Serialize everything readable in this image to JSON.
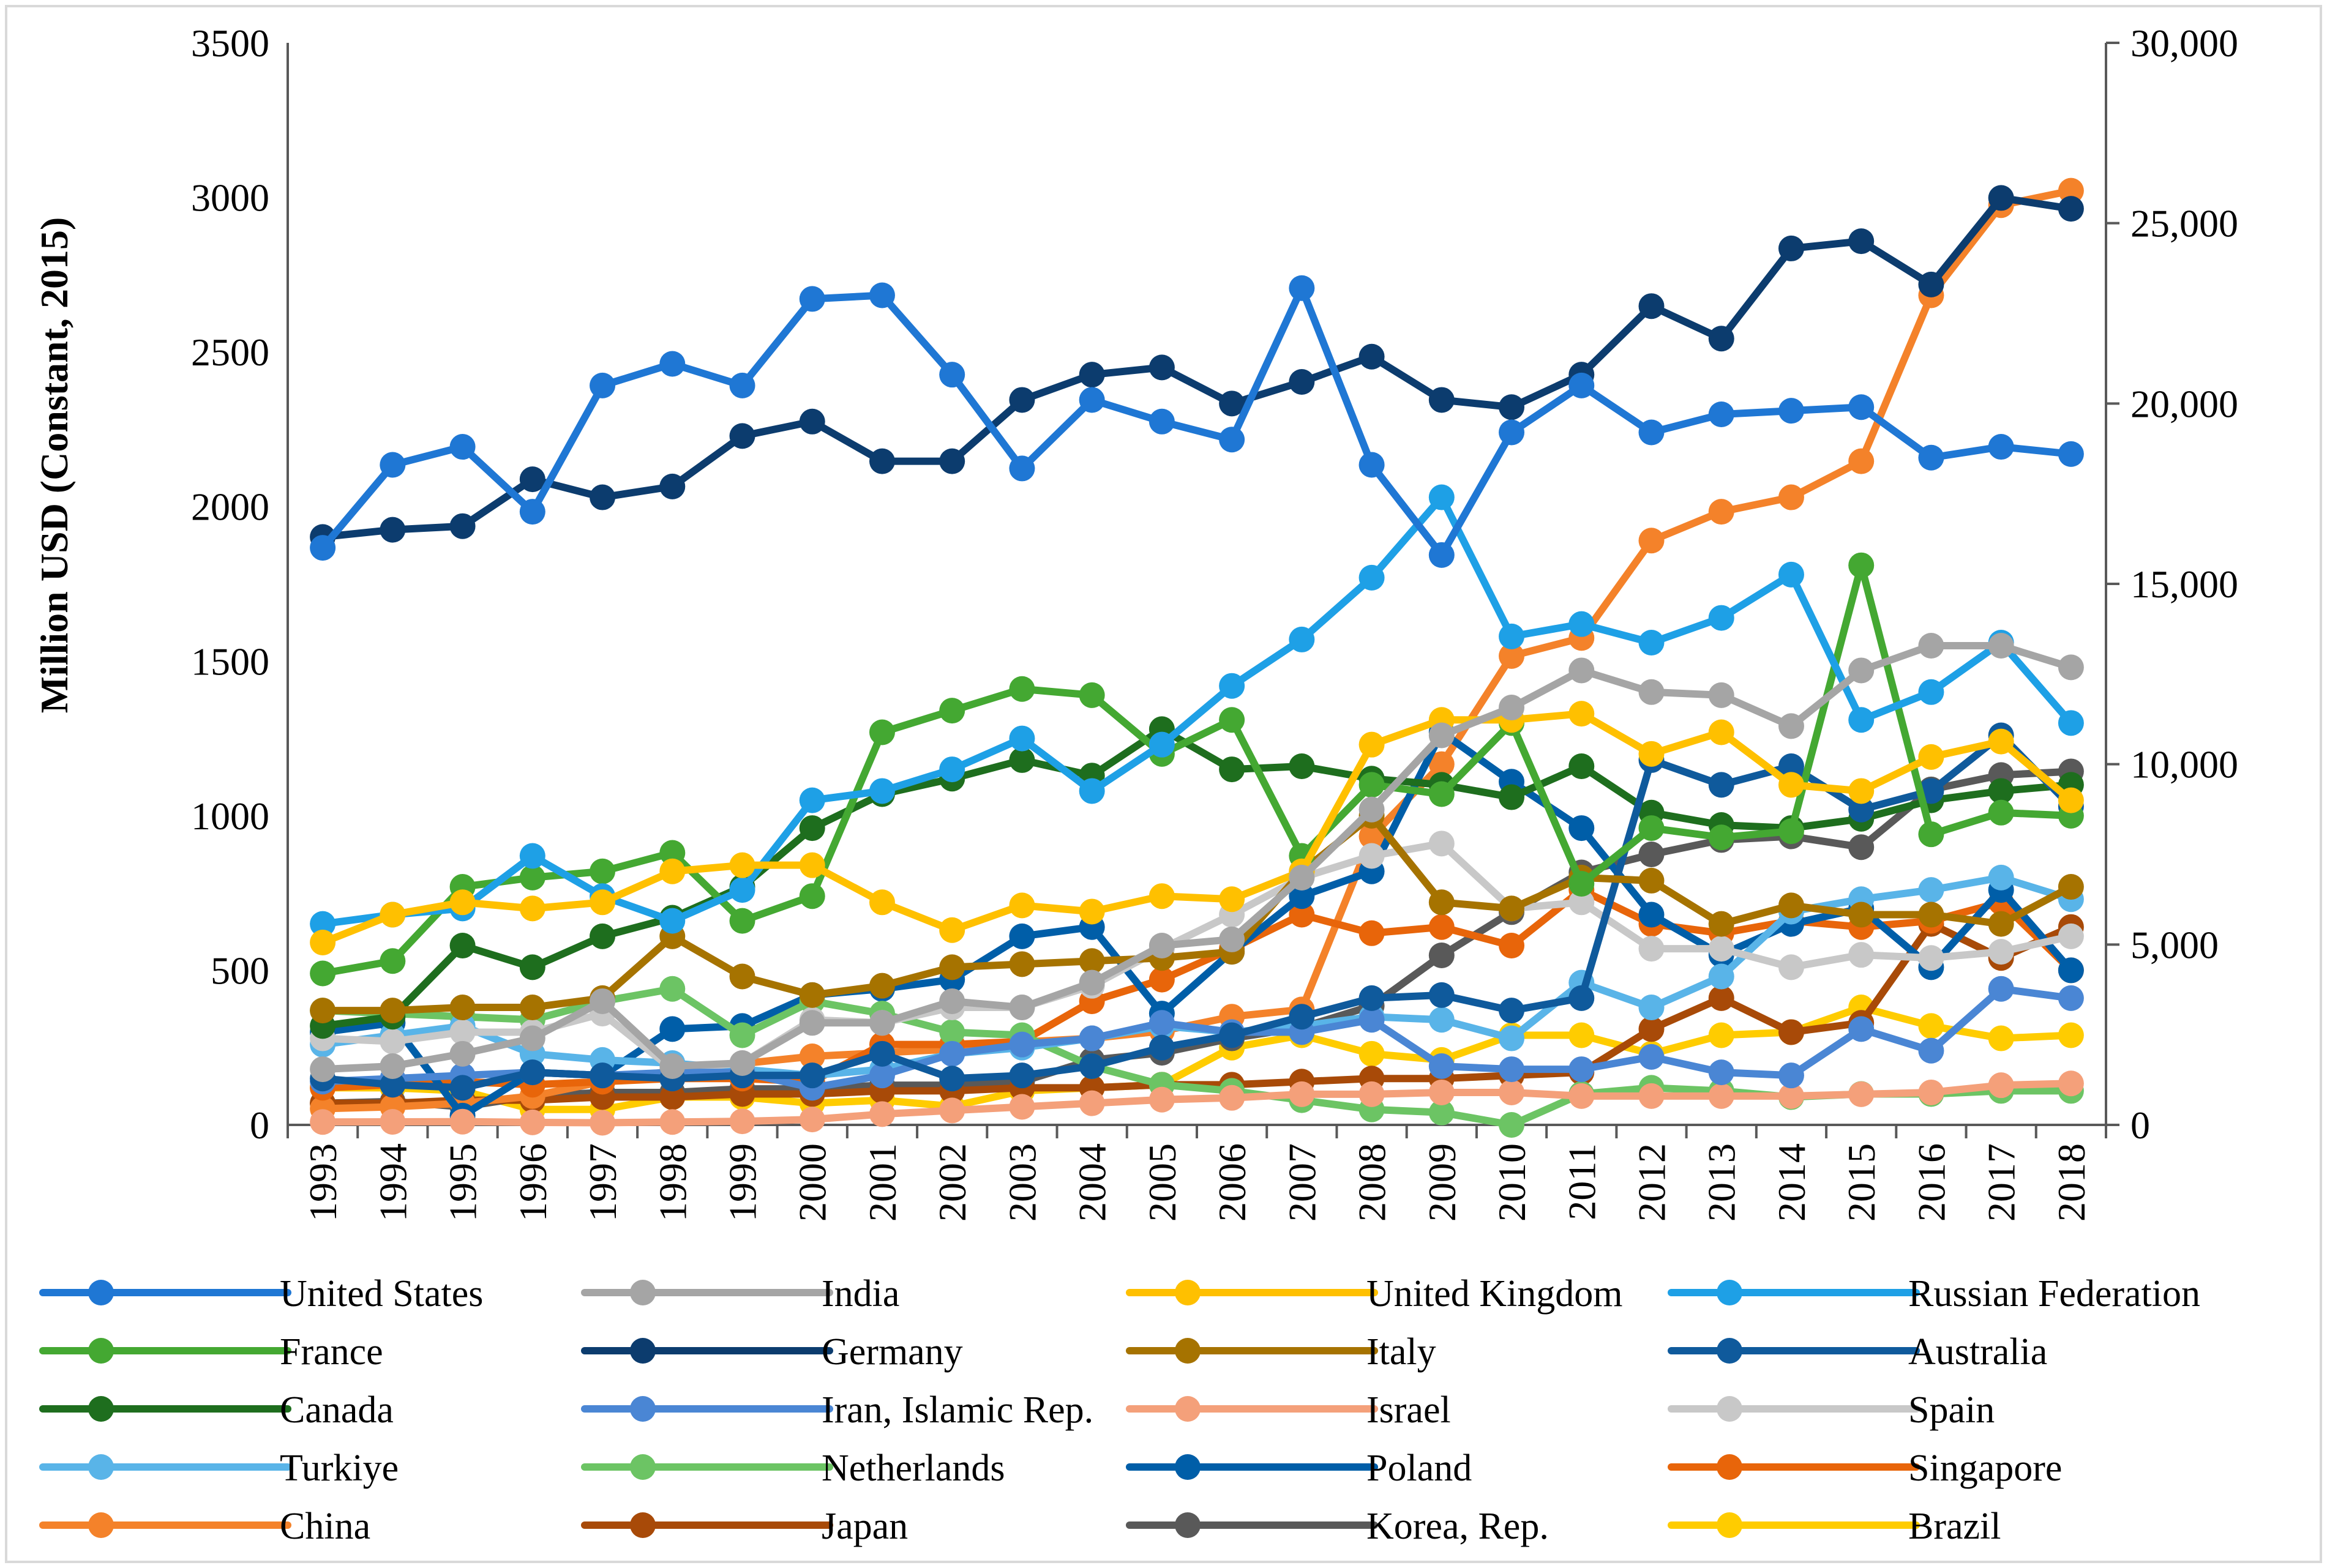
{
  "chart_data": {
    "type": "line",
    "title": "",
    "ylabel": "Million USD (Constant, 2015)",
    "ylabel_right": "",
    "xlabel": "",
    "x": [
      "1993",
      "1994",
      "1995",
      "1996",
      "1997",
      "1998",
      "1999",
      "2000",
      "2001",
      "2002",
      "2003",
      "2004",
      "2005",
      "2006",
      "2007",
      "2008",
      "2009",
      "2010",
      "2011",
      "2012",
      "2013",
      "2014",
      "2015",
      "2016",
      "2017",
      "2018"
    ],
    "ylim_left": [
      0,
      3500
    ],
    "yticks_left": [
      "0",
      "500",
      "1000",
      "1500",
      "2000",
      "2500",
      "3000",
      "3500"
    ],
    "ylim_right": [
      0,
      30000
    ],
    "yticks_right": [
      "0",
      "5,000",
      "10,000",
      "15,000",
      "20,000",
      "25,000",
      "30,000"
    ],
    "grid": false,
    "legend_position": "bottom",
    "series": [
      {
        "name": "United States",
        "color": "#1f77d4",
        "axis": "right",
        "values": [
          16000,
          18300,
          18800,
          17000,
          20500,
          21100,
          20500,
          22900,
          23000,
          20800,
          18200,
          20100,
          19500,
          19000,
          23200,
          18300,
          15800,
          19200,
          20500,
          19200,
          19700,
          19800,
          19900,
          18500,
          18800,
          18600
        ]
      },
      {
        "name": "India",
        "color": "#a5a5a5",
        "axis": "left",
        "values": [
          180,
          190,
          230,
          280,
          400,
          190,
          200,
          330,
          330,
          400,
          380,
          460,
          580,
          600,
          800,
          1020,
          1260,
          1350,
          1470,
          1400,
          1390,
          1290,
          1470,
          1550,
          1550,
          1480
        ]
      },
      {
        "name": "United Kingdom",
        "color": "#ffc000",
        "axis": "left",
        "values": [
          590,
          680,
          720,
          700,
          720,
          820,
          840,
          840,
          720,
          630,
          710,
          690,
          740,
          730,
          820,
          1230,
          1310,
          1310,
          1330,
          1200,
          1270,
          1100,
          1080,
          1190,
          1240,
          1050
        ]
      },
      {
        "name": "Russian Federation",
        "color": "#1ea0e6",
        "axis": "left",
        "values": [
          650,
          680,
          700,
          870,
          740,
          660,
          760,
          1050,
          1080,
          1150,
          1250,
          1080,
          1230,
          1420,
          1570,
          1770,
          2030,
          1580,
          1620,
          1560,
          1640,
          1780,
          1310,
          1400,
          1560,
          1300
        ]
      },
      {
        "name": "France",
        "color": "#44a832",
        "axis": "left",
        "values": [
          490,
          530,
          770,
          800,
          820,
          880,
          660,
          740,
          1270,
          1340,
          1410,
          1390,
          1200,
          1310,
          870,
          1100,
          1070,
          1300,
          780,
          960,
          930,
          950,
          1810,
          940,
          1010,
          1000
        ]
      },
      {
        "name": "Germany",
        "color": "#0c3c6e",
        "axis": "right",
        "values": [
          16300,
          16500,
          16600,
          17900,
          17400,
          17700,
          19100,
          19500,
          18400,
          18400,
          20100,
          20800,
          21000,
          20000,
          20600,
          21300,
          20100,
          19900,
          20800,
          22700,
          21800,
          24300,
          24500,
          23300,
          25700,
          25400
        ]
      },
      {
        "name": "Italy",
        "color": "#a67300",
        "axis": "left",
        "values": [
          370,
          370,
          380,
          380,
          410,
          610,
          480,
          420,
          450,
          510,
          520,
          530,
          540,
          560,
          820,
          1000,
          720,
          700,
          800,
          790,
          650,
          710,
          680,
          680,
          650,
          770
        ]
      },
      {
        "name": "Australia",
        "color": "#0f5a9c",
        "axis": "left",
        "values": [
          150,
          130,
          120,
          170,
          160,
          150,
          160,
          160,
          230,
          150,
          160,
          190,
          250,
          290,
          350,
          410,
          420,
          370,
          410,
          1180,
          1100,
          1160,
          1020,
          1080,
          1260,
          1030
        ]
      },
      {
        "name": "Canada",
        "color": "#1e6e1e",
        "axis": "left",
        "values": [
          320,
          350,
          580,
          510,
          610,
          670,
          770,
          960,
          1070,
          1120,
          1180,
          1130,
          1280,
          1150,
          1160,
          1120,
          1100,
          1060,
          1160,
          1010,
          970,
          960,
          990,
          1050,
          1080,
          1100
        ]
      },
      {
        "name": "Iran, Islamic Rep.",
        "color": "#4a86d4",
        "axis": "left",
        "values": [
          140,
          150,
          160,
          170,
          160,
          170,
          170,
          120,
          160,
          230,
          260,
          280,
          330,
          300,
          300,
          340,
          190,
          180,
          180,
          220,
          170,
          160,
          310,
          240,
          440,
          410
        ]
      },
      {
        "name": "Israel",
        "color": "#f4a07a",
        "axis": "right",
        "values": [
          80,
          85,
          90,
          70,
          60,
          80,
          100,
          150,
          300,
          400,
          500,
          600,
          700,
          750,
          850,
          850,
          900,
          900,
          800,
          800,
          800,
          800,
          850,
          900,
          1100,
          1150
        ]
      },
      {
        "name": "Spain",
        "color": "#c8c8c8",
        "axis": "left",
        "values": [
          280,
          270,
          300,
          300,
          360,
          180,
          200,
          340,
          330,
          380,
          380,
          450,
          570,
          680,
          800,
          870,
          910,
          700,
          720,
          570,
          570,
          510,
          550,
          540,
          560,
          610
        ]
      },
      {
        "name": "Turkiye",
        "color": "#59b4e8",
        "axis": "left",
        "values": [
          260,
          290,
          320,
          230,
          210,
          200,
          180,
          160,
          180,
          230,
          250,
          280,
          320,
          300,
          320,
          350,
          340,
          280,
          460,
          380,
          480,
          690,
          730,
          760,
          800,
          730
        ]
      },
      {
        "name": "Netherlands",
        "color": "#6cc464",
        "axis": "left",
        "values": [
          370,
          360,
          350,
          340,
          400,
          440,
          290,
          400,
          360,
          300,
          290,
          190,
          130,
          110,
          80,
          50,
          40,
          0,
          100,
          120,
          110,
          90,
          100,
          100,
          110,
          110
        ]
      },
      {
        "name": "Poland",
        "color": "#005ea8",
        "axis": "left",
        "values": [
          300,
          330,
          30,
          170,
          160,
          310,
          320,
          420,
          440,
          470,
          610,
          640,
          360,
          560,
          740,
          820,
          1270,
          1110,
          960,
          680,
          550,
          650,
          700,
          510,
          760,
          500
        ]
      },
      {
        "name": "Singapore",
        "color": "#e8650a",
        "axis": "left",
        "values": [
          120,
          130,
          140,
          130,
          140,
          150,
          150,
          140,
          260,
          260,
          270,
          400,
          470,
          570,
          680,
          620,
          640,
          580,
          760,
          650,
          620,
          660,
          640,
          660,
          720,
          500
        ]
      },
      {
        "name": "China",
        "color": "#f4822a",
        "axis": "right",
        "values": [
          450,
          500,
          600,
          800,
          1200,
          1500,
          1700,
          1900,
          2000,
          2100,
          2300,
          2400,
          2600,
          3000,
          3200,
          8000,
          10000,
          13000,
          13500,
          16200,
          17000,
          17400,
          18400,
          23000,
          25500,
          25900
        ]
      },
      {
        "name": "Japan",
        "color": "#a84a08",
        "axis": "left",
        "values": [
          70,
          70,
          80,
          80,
          90,
          90,
          100,
          100,
          110,
          110,
          120,
          120,
          130,
          130,
          140,
          150,
          150,
          160,
          170,
          310,
          410,
          300,
          330,
          650,
          540,
          640
        ]
      },
      {
        "name": "Korea, Rep.",
        "color": "#595959",
        "axis": "right",
        "values": [
          600,
          650,
          500,
          800,
          900,
          900,
          1000,
          1000,
          1100,
          1100,
          1200,
          1800,
          2000,
          2400,
          2700,
          3300,
          4700,
          5900,
          7000,
          7500,
          7900,
          8000,
          7700,
          9300,
          9700,
          9800
        ]
      },
      {
        "name": "Brazil",
        "color": "#ffcc00",
        "axis": "left",
        "values": [
          120,
          120,
          110,
          50,
          50,
          90,
          90,
          70,
          80,
          60,
          110,
          120,
          130,
          250,
          290,
          230,
          210,
          290,
          290,
          230,
          290,
          300,
          380,
          320,
          280,
          290
        ]
      }
    ]
  }
}
